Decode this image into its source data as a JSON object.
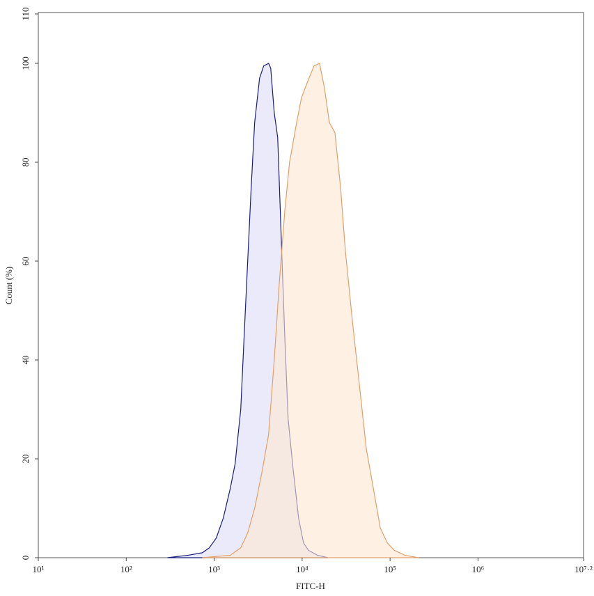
{
  "chart_data": {
    "type": "area",
    "x_label": "FITC-H",
    "y_label": "Count (%)",
    "xscale": "log",
    "xlim": [
      10,
      15848931.92
    ],
    "xticks": [
      {
        "value": 10,
        "label": "10¹"
      },
      {
        "value": 100,
        "label": "10²"
      },
      {
        "value": 1000,
        "label": "10³"
      },
      {
        "value": 10000,
        "label": "10⁴"
      },
      {
        "value": 100000,
        "label": "10⁵"
      },
      {
        "value": 1000000,
        "label": "10⁶"
      },
      {
        "value": 15848931.92,
        "label": "10⁷·²"
      }
    ],
    "ylim": [
      0,
      110
    ],
    "yticks": [
      0,
      20,
      40,
      60,
      80,
      100,
      110
    ],
    "series": [
      {
        "color": "#1c1c7a",
        "fill": "#dcdcf8",
        "x": [
          294,
          508,
          733,
          880,
          1057,
          1268,
          1523,
          1730,
          2004,
          2193,
          2404,
          2636,
          2884,
          3281,
          3659,
          4159,
          4395,
          4818,
          5274,
          5780,
          6340,
          6935,
          7889,
          9120,
          10370,
          11790,
          14950,
          19680
        ],
        "values": [
          0,
          0.5,
          1,
          2,
          4,
          8,
          14,
          19,
          30,
          45,
          60,
          75,
          88,
          97,
          99.5,
          100,
          99,
          90,
          85,
          65,
          45,
          28,
          18,
          8,
          3,
          1.5,
          0.5,
          0
        ]
      },
      {
        "color": "#e0a06a",
        "fill": "#fde8d2",
        "x": [
          733,
          1523,
          2004,
          2404,
          2884,
          3467,
          4159,
          4818,
          5470,
          6340,
          7194,
          8650,
          9820,
          11370,
          13650,
          15780,
          17950,
          20420,
          23600,
          27330,
          31050,
          37240,
          44770,
          53700,
          64570,
          77470,
          92950,
          111700,
          146900,
          211300
        ],
        "values": [
          0,
          0.5,
          2,
          5,
          10,
          17,
          25,
          40,
          55,
          70,
          80,
          88,
          93,
          96,
          99.5,
          100,
          95,
          88,
          86,
          75,
          62,
          48,
          35,
          22,
          14,
          6,
          3,
          1.5,
          0.5,
          0
        ]
      }
    ]
  }
}
